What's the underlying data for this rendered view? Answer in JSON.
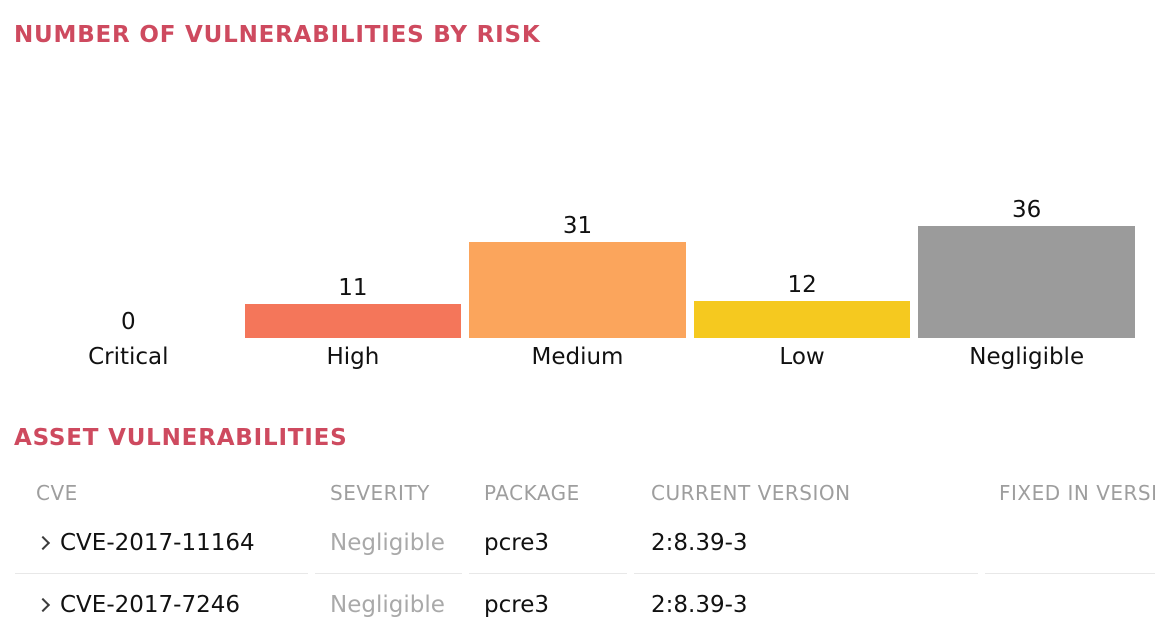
{
  "colors": {
    "title_accent": "#CE4A5F",
    "table_header_text": "#9E9E9E",
    "severity_muted_text": "#A9A9A9",
    "row_divider": "#E8E8E8",
    "value_text": "#111111"
  },
  "chart_data": {
    "type": "bar",
    "title": "NUMBER OF VULNERABILITIES BY RISK",
    "categories": [
      "Critical",
      "High",
      "Medium",
      "Low",
      "Negligible"
    ],
    "values": [
      0,
      11,
      31,
      12,
      36
    ],
    "bar_colors": [
      "",
      "#F4765A",
      "#FBA55C",
      "#F5C91F",
      "#9B9B9B"
    ],
    "xlabel": "",
    "ylabel": "",
    "axis_lines": false,
    "grid": false,
    "legend": false,
    "data_labels": true
  },
  "table": {
    "title": "ASSET VULNERABILITIES",
    "columns": [
      {
        "label": "CVE"
      },
      {
        "label": "SEVERITY"
      },
      {
        "label": "PACKAGE"
      },
      {
        "label": "CURRENT VERSION"
      },
      {
        "label": "FIXED IN VERSION"
      }
    ],
    "rows": [
      {
        "cve": "CVE-2017-11164",
        "severity": "Negligible",
        "package": "pcre3",
        "current_version": "2:8.39-3",
        "fixed_in_version": ""
      },
      {
        "cve": "CVE-2017-7246",
        "severity": "Negligible",
        "package": "pcre3",
        "current_version": "2:8.39-3",
        "fixed_in_version": ""
      }
    ],
    "expand_icon": "chevron-right-icon"
  }
}
